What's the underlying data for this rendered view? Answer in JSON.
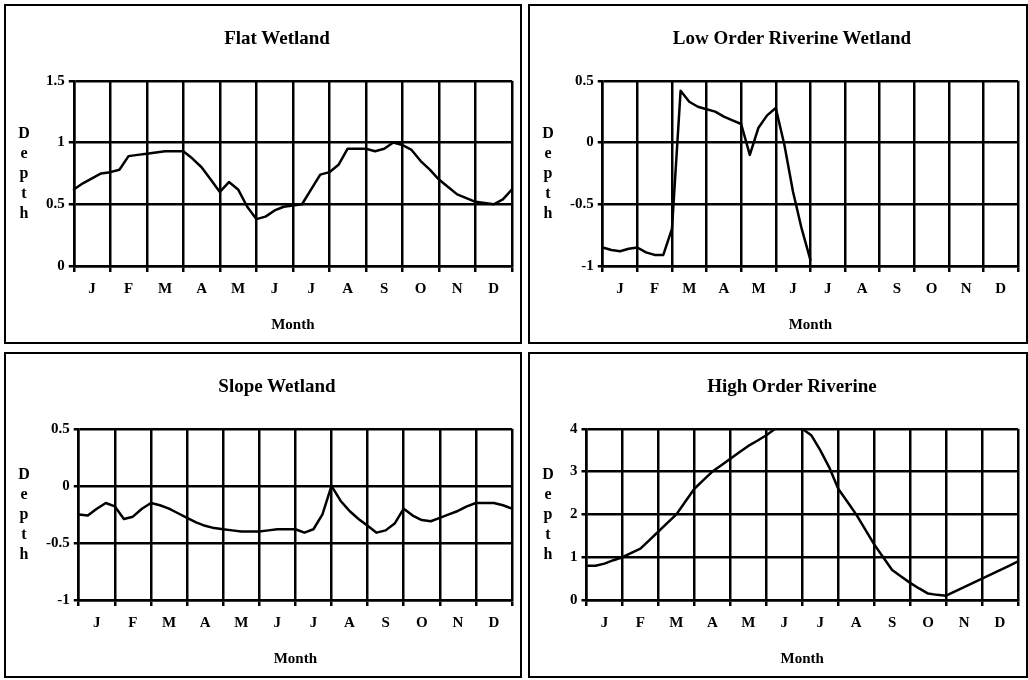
{
  "chart_data": [
    {
      "type": "line",
      "title": "Flat Wetland",
      "xlabel": "Month",
      "ylabel": "Depth",
      "grid": true,
      "ylim": [
        0,
        1.5
      ],
      "yticks": [
        0,
        0.5,
        1,
        1.5
      ],
      "categories": [
        null,
        null,
        "J",
        null,
        null,
        null,
        "F",
        null,
        null,
        null,
        "M",
        null,
        null,
        null,
        "A",
        null,
        null,
        null,
        "M",
        null,
        null,
        null,
        "J",
        null,
        null,
        null,
        "J",
        null,
        null,
        null,
        "A",
        null,
        null,
        null,
        "S",
        null,
        null,
        null,
        "O",
        null,
        null,
        null,
        "N",
        null,
        null,
        null,
        "D",
        null,
        null
      ],
      "series": [
        {
          "color": "#000000",
          "values": [
            0.62,
            0.67,
            0.71,
            0.75,
            0.76,
            0.78,
            0.89,
            0.9,
            0.91,
            0.92,
            0.93,
            0.93,
            0.93,
            0.87,
            0.8,
            0.7,
            0.6,
            0.68,
            0.62,
            0.48,
            0.38,
            0.4,
            0.45,
            0.48,
            0.49,
            0.5,
            0.62,
            0.74,
            0.76,
            0.82,
            0.95,
            0.95,
            0.95,
            0.93,
            0.95,
            1.0,
            0.98,
            0.94,
            0.85,
            0.78,
            0.7,
            0.64,
            0.58,
            0.55,
            0.52,
            0.51,
            0.5,
            0.54,
            0.62
          ]
        }
      ]
    },
    {
      "type": "line",
      "title": "Low Order Riverine Wetland",
      "xlabel": "Month",
      "ylabel": "Depth",
      "grid": true,
      "ylim": [
        -1,
        0.5
      ],
      "yticks": [
        -1,
        -0.5,
        0,
        0.5
      ],
      "categories": [
        null,
        null,
        "J",
        null,
        null,
        null,
        "F",
        null,
        null,
        null,
        "M",
        null,
        null,
        null,
        "A",
        null,
        null,
        null,
        "M",
        null,
        null,
        null,
        "J",
        null,
        null,
        null,
        "J",
        null,
        null,
        null,
        "A",
        null,
        null,
        null,
        "S",
        null,
        null,
        null,
        "O",
        null,
        null,
        null,
        "N",
        null,
        null,
        null,
        "D",
        null,
        null
      ],
      "series": [
        {
          "color": "#000000",
          "values": [
            -0.85,
            -0.87,
            -0.88,
            -0.86,
            -0.85,
            -0.89,
            -0.91,
            -0.91,
            -0.7,
            0.42,
            0.33,
            0.29,
            0.27,
            0.25,
            0.21,
            0.18,
            0.15,
            -0.1,
            0.12,
            0.22,
            0.28,
            -0.02,
            -0.4,
            -0.7,
            -0.95,
            null,
            null,
            null,
            null,
            null,
            null,
            null,
            null,
            null,
            null,
            null,
            null,
            null,
            null,
            null,
            null,
            null,
            null,
            null,
            null,
            null,
            null,
            null,
            null
          ]
        }
      ]
    },
    {
      "type": "line",
      "title": "Slope Wetland",
      "xlabel": "Month",
      "ylabel": "Depth",
      "grid": true,
      "ylim": [
        -1,
        0.5
      ],
      "yticks": [
        -1,
        -0.5,
        0,
        0.5
      ],
      "categories": [
        null,
        null,
        "J",
        null,
        null,
        null,
        "F",
        null,
        null,
        null,
        "M",
        null,
        null,
        null,
        "A",
        null,
        null,
        null,
        "M",
        null,
        null,
        null,
        "J",
        null,
        null,
        null,
        "J",
        null,
        null,
        null,
        "A",
        null,
        null,
        null,
        "S",
        null,
        null,
        null,
        "O",
        null,
        null,
        null,
        "N",
        null,
        null,
        null,
        "D",
        null,
        null
      ],
      "series": [
        {
          "color": "#000000",
          "values": [
            -0.25,
            -0.26,
            -0.2,
            -0.15,
            -0.18,
            -0.29,
            -0.27,
            -0.2,
            -0.15,
            -0.17,
            -0.2,
            -0.24,
            -0.28,
            -0.32,
            -0.35,
            -0.37,
            -0.38,
            -0.39,
            -0.4,
            -0.4,
            -0.4,
            -0.39,
            -0.38,
            -0.38,
            -0.38,
            -0.41,
            -0.38,
            -0.25,
            0.0,
            -0.13,
            -0.22,
            -0.29,
            -0.35,
            -0.41,
            -0.39,
            -0.33,
            -0.2,
            -0.26,
            -0.3,
            -0.31,
            -0.28,
            -0.25,
            -0.22,
            -0.18,
            -0.15,
            -0.15,
            -0.15,
            -0.17,
            -0.2
          ]
        }
      ]
    },
    {
      "type": "line",
      "title": "High Order Riverine",
      "xlabel": "Month",
      "ylabel": "Depth",
      "grid": true,
      "ylim": [
        0,
        4
      ],
      "yticks": [
        0,
        1,
        2,
        3,
        4
      ],
      "categories": [
        null,
        null,
        "J",
        null,
        null,
        null,
        "F",
        null,
        null,
        null,
        "M",
        null,
        null,
        null,
        "A",
        null,
        null,
        null,
        "M",
        null,
        null,
        null,
        "J",
        null,
        null,
        null,
        "J",
        null,
        null,
        null,
        "A",
        null,
        null,
        null,
        "S",
        null,
        null,
        null,
        "O",
        null,
        null,
        null,
        "N",
        null,
        null,
        null,
        "D",
        null,
        null
      ],
      "series": [
        {
          "color": "#000000",
          "values": [
            0.8,
            0.8,
            0.85,
            0.93,
            1.0,
            1.1,
            1.2,
            1.4,
            1.6,
            1.8,
            2.0,
            2.3,
            2.6,
            2.8,
            3.0,
            3.15,
            3.3,
            3.45,
            3.6,
            3.72,
            3.85,
            4.0,
            4.0,
            4.0,
            4.0,
            3.85,
            3.5,
            3.1,
            2.6,
            2.3,
            2.0,
            1.65,
            1.3,
            1.0,
            0.7,
            0.55,
            0.4,
            0.27,
            0.15,
            0.12,
            0.1,
            0.2,
            0.3,
            0.4,
            0.5,
            0.6,
            0.7,
            0.8,
            0.9
          ]
        }
      ]
    }
  ]
}
